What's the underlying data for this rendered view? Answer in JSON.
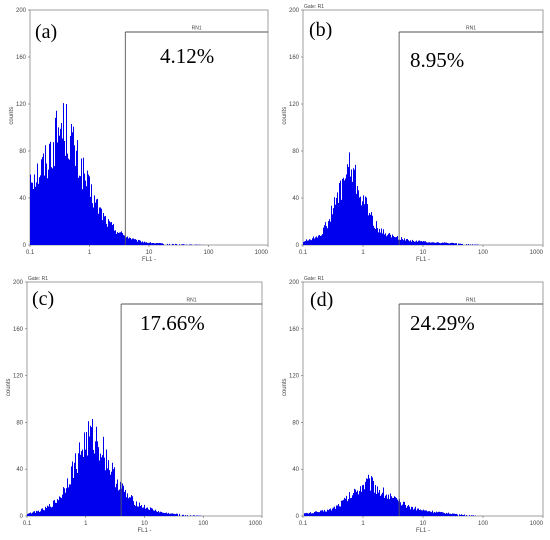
{
  "chart_data": [
    {
      "type": "histogram",
      "panel_label": "(a)",
      "gate_label": "",
      "marker_label": "RN1",
      "percent": "4.12%",
      "xlabel": "FL1 -",
      "ylabel": "counts",
      "x_scale": "log",
      "xlim": [
        0.1,
        1000
      ],
      "ylim": [
        0,
        200
      ],
      "x_ticks": [
        "0.1",
        "1",
        "10",
        "100",
        "1000"
      ],
      "y_ticks": [
        "0",
        "40",
        "80",
        "120",
        "160",
        "200"
      ],
      "marker_start": 4,
      "x": [
        0.1,
        0.12,
        0.15,
        0.2,
        0.25,
        0.3,
        0.35,
        0.4,
        0.5,
        0.6,
        0.8,
        1.0,
        1.3,
        1.6,
        2.0,
        3.0,
        4.0,
        6.0,
        10,
        20,
        50,
        100
      ],
      "values": [
        65,
        62,
        66,
        76,
        90,
        100,
        105,
        102,
        92,
        76,
        62,
        48,
        36,
        28,
        20,
        12,
        8,
        4,
        2,
        1,
        0.5,
        0
      ]
    },
    {
      "type": "histogram",
      "panel_label": "(b)",
      "gate_label": "Gate: R1",
      "marker_label": "RN1",
      "percent": "8.95%",
      "xlabel": "FL1 -",
      "ylabel": "counts",
      "x_scale": "log",
      "xlim": [
        0.1,
        1000
      ],
      "ylim": [
        0,
        200
      ],
      "x_ticks": [
        "0.1",
        "1",
        "10",
        "100",
        "1000"
      ],
      "y_ticks": [
        "0",
        "40",
        "80",
        "120",
        "160",
        "200"
      ],
      "marker_start": 4,
      "x": [
        0.1,
        0.15,
        0.2,
        0.25,
        0.3,
        0.4,
        0.5,
        0.6,
        0.7,
        0.8,
        1.0,
        1.3,
        1.6,
        2.0,
        3.0,
        4.0,
        6.0,
        10,
        20,
        50,
        100
      ],
      "values": [
        3,
        6,
        10,
        18,
        28,
        45,
        60,
        68,
        62,
        52,
        40,
        28,
        18,
        12,
        8,
        6,
        4,
        3,
        2,
        1,
        0
      ]
    },
    {
      "type": "histogram",
      "panel_label": "(c)",
      "gate_label": "Gate: R1",
      "marker_label": "RN1",
      "percent": "17.66%",
      "xlabel": "FL1 -",
      "ylabel": "counts",
      "x_scale": "log",
      "xlim": [
        0.1,
        1000
      ],
      "ylim": [
        0,
        200
      ],
      "x_ticks": [
        "0.1",
        "1",
        "10",
        "100",
        "1000"
      ],
      "y_ticks": [
        "0",
        "40",
        "80",
        "120",
        "160",
        "200"
      ],
      "marker_start": 4,
      "x": [
        0.1,
        0.15,
        0.2,
        0.3,
        0.4,
        0.5,
        0.7,
        0.9,
        1.2,
        1.5,
        2.0,
        2.5,
        3.0,
        4.0,
        5.0,
        7.0,
        10,
        15,
        20,
        30,
        50,
        100
      ],
      "values": [
        2,
        4,
        6,
        12,
        20,
        32,
        48,
        62,
        70,
        68,
        58,
        46,
        36,
        26,
        18,
        12,
        8,
        5,
        3,
        2,
        1,
        0
      ]
    },
    {
      "type": "histogram",
      "panel_label": "(d)",
      "gate_label": "Gate: R1",
      "marker_label": "RN1",
      "percent": "24.29%",
      "xlabel": "FL1 -",
      "ylabel": "counts",
      "x_scale": "log",
      "xlim": [
        0.1,
        1000
      ],
      "ylim": [
        0,
        200
      ],
      "x_ticks": [
        "0.1",
        "1",
        "10",
        "100",
        "1000"
      ],
      "y_ticks": [
        "0",
        "40",
        "80",
        "120",
        "160",
        "200"
      ],
      "marker_start": 4,
      "x": [
        0.1,
        0.15,
        0.2,
        0.3,
        0.4,
        0.5,
        0.7,
        0.9,
        1.2,
        1.5,
        2.0,
        3.0,
        4.0,
        6.0,
        10,
        20,
        50,
        100
      ],
      "values": [
        2,
        3,
        4,
        6,
        10,
        14,
        20,
        26,
        30,
        28,
        22,
        16,
        12,
        8,
        5,
        3,
        1,
        0
      ]
    }
  ]
}
